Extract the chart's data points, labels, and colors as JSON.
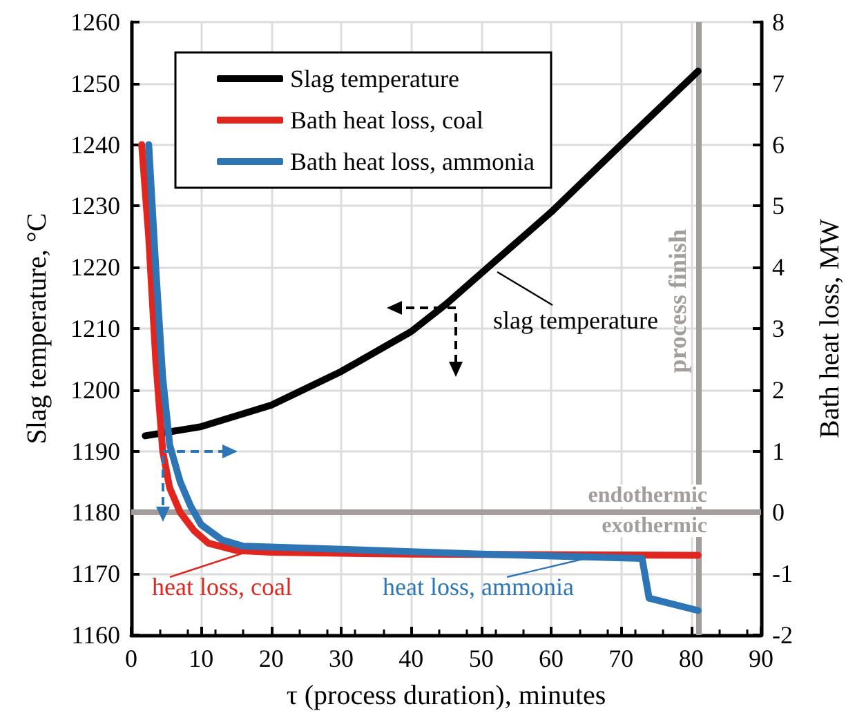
{
  "chart_data": {
    "type": "line",
    "xlabel": "τ (process duration), minutes",
    "ylabel": "Slag temperature, °C",
    "y2label": "Bath heat loss, MW",
    "xlim": [
      0,
      90
    ],
    "xticks": [
      0,
      10,
      20,
      30,
      40,
      50,
      60,
      70,
      80,
      90
    ],
    "ylim": [
      1160,
      1260
    ],
    "yticks": [
      1160,
      1170,
      1180,
      1190,
      1200,
      1210,
      1220,
      1230,
      1240,
      1250,
      1260
    ],
    "y2lim": [
      -2,
      8
    ],
    "y2ticks": [
      -2,
      -1,
      0,
      1,
      2,
      3,
      4,
      5,
      6,
      7,
      8
    ],
    "grid": true,
    "legend": "top left",
    "line_style": "solid",
    "marker": "none",
    "series": [
      {
        "name": "Slag temperature",
        "color": "#000000",
        "x": [
          2,
          10,
          20,
          30,
          40,
          45,
          50,
          60,
          70,
          81
        ],
        "values": [
          1192.5,
          1194,
          1197.5,
          1203,
          1209.5,
          1214,
          1219,
          1229,
          1240,
          1252
        ]
      },
      {
        "name": "Bath heat loss, coal",
        "color": "#e0261f",
        "axis": "y2",
        "x": [
          1.5,
          2.5,
          3.5,
          4.5,
          5.5,
          7,
          9,
          11,
          15,
          20,
          40,
          81
        ],
        "values": [
          6,
          4.5,
          2.5,
          1,
          0.4,
          0,
          -0.3,
          -0.5,
          -0.62,
          -0.65,
          -0.68,
          -0.7
        ]
      },
      {
        "name": "Bath heat loss, ammonia",
        "color": "#2e75b6",
        "axis": "y2",
        "x": [
          2.5,
          3.5,
          4.5,
          5.5,
          7,
          8.5,
          10,
          13,
          16,
          30,
          50,
          73,
          74,
          81
        ],
        "values": [
          6,
          4,
          2.2,
          1.1,
          0.5,
          0.1,
          -0.2,
          -0.45,
          -0.55,
          -0.6,
          -0.68,
          -0.75,
          -1.4,
          -1.6
        ]
      }
    ],
    "ref_lines": [
      {
        "axis": "y2",
        "value": 0,
        "label": null,
        "color": "#a39e9c"
      },
      {
        "axis": "x",
        "value": 81,
        "label": "process finish",
        "color": "#a39e9c"
      }
    ],
    "annotations": [
      "slag temperature",
      "heat loss, coal",
      "heat loss, ammonia",
      "endothermic",
      "exothermic"
    ]
  }
}
